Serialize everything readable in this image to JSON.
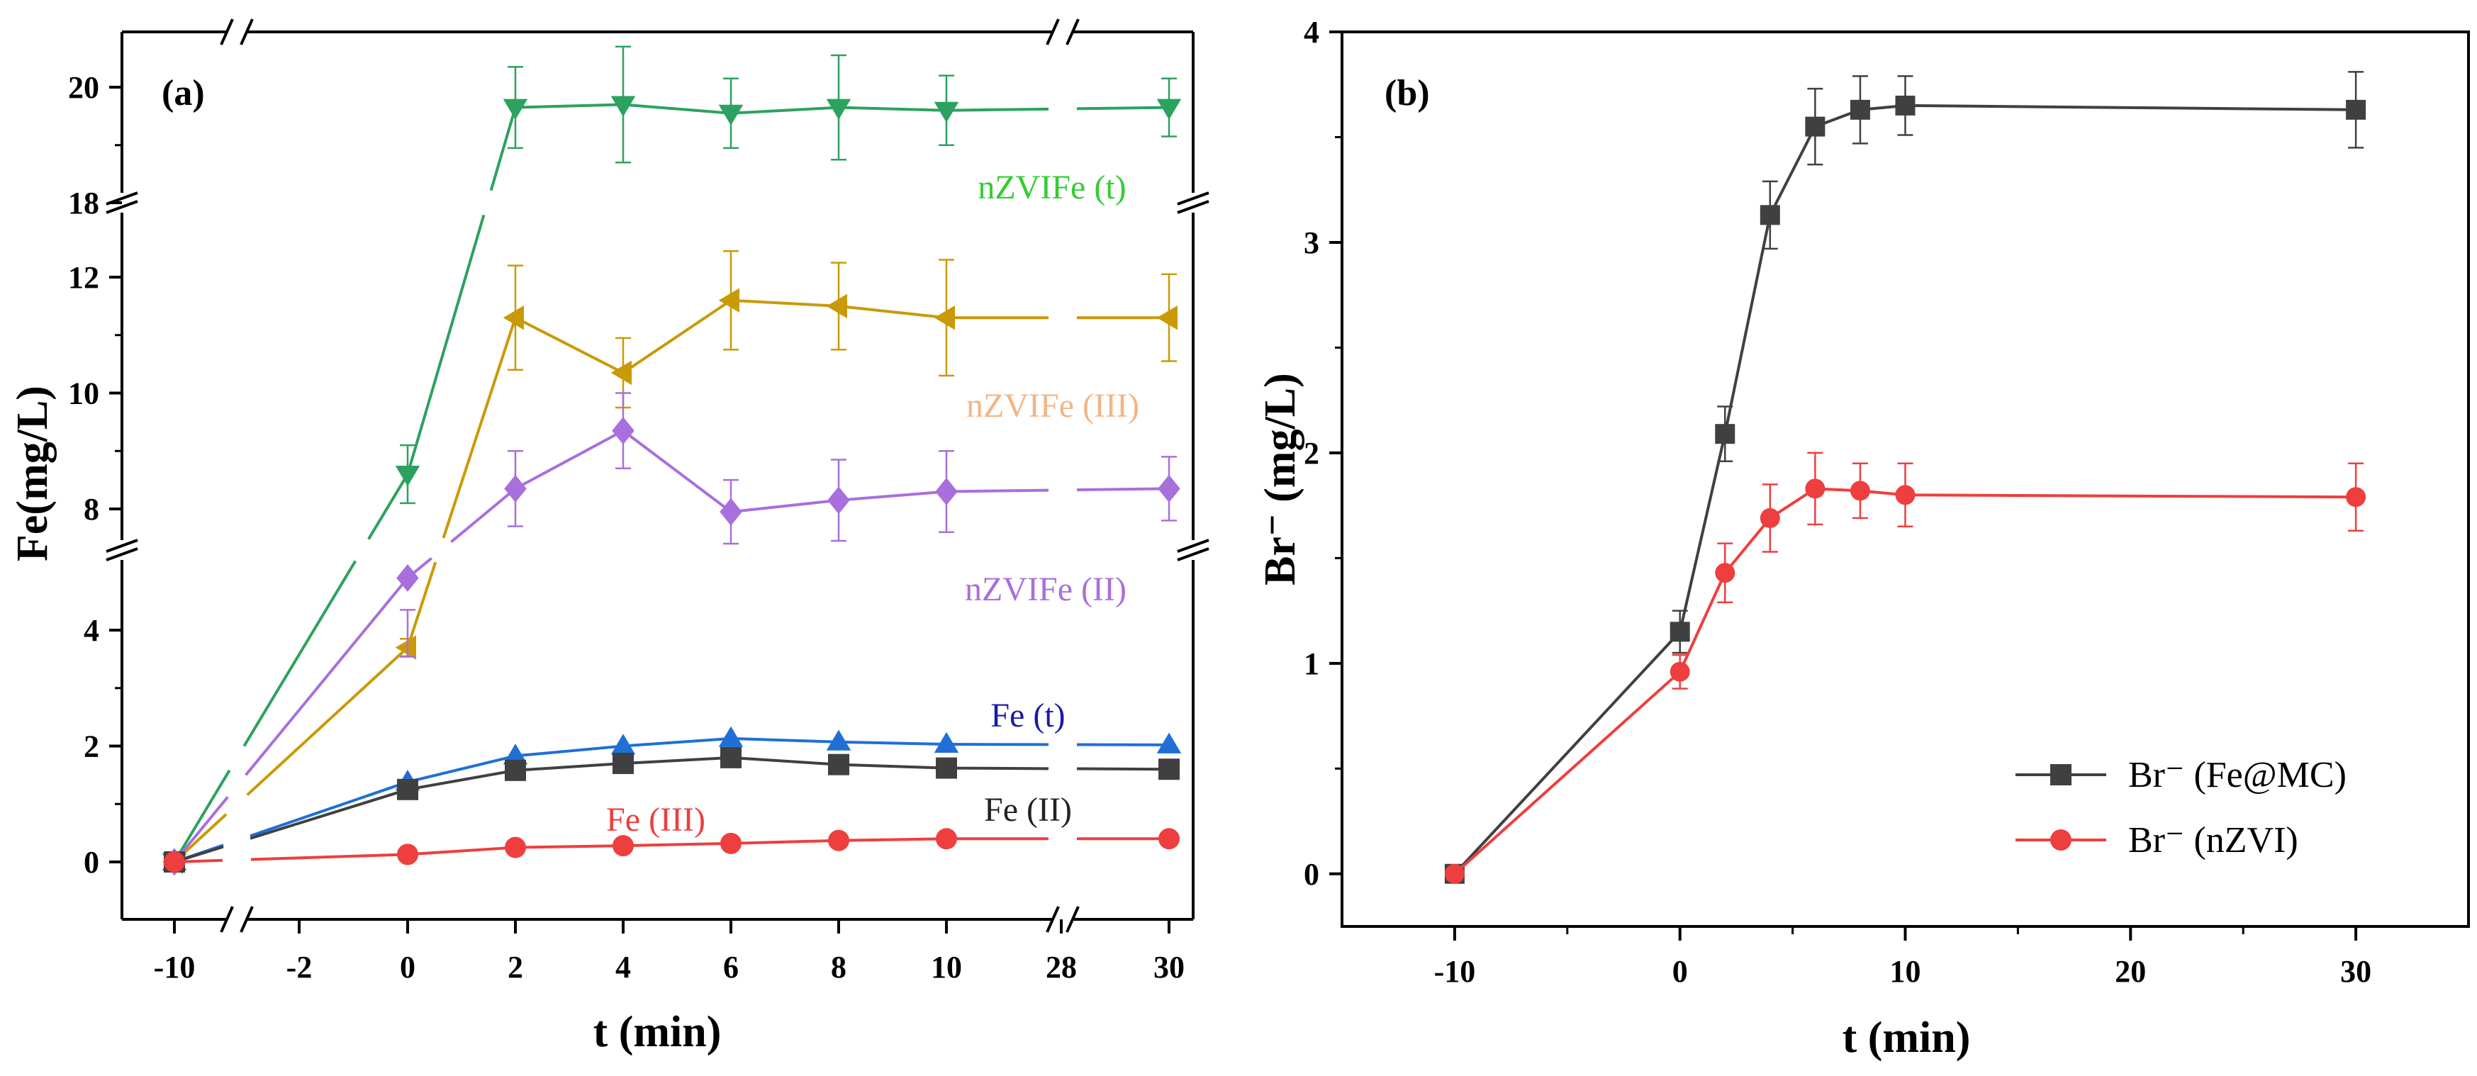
{
  "chart_data": [
    {
      "panel": "(a)",
      "type": "line",
      "xlabel": "t (min)",
      "ylabel": "Fe(mg/L)",
      "x_tick_labels": [
        "-10",
        "-2",
        "0",
        "2",
        "4",
        "6",
        "8",
        "10",
        "28",
        "30"
      ],
      "x_breaks": [
        "-10 to -2",
        "10 to 28"
      ],
      "y_breaks": [
        "5 to 7.5",
        "12.5 to 18"
      ],
      "y_ticks": [
        0,
        2,
        4,
        8,
        10,
        12,
        18,
        20
      ],
      "y_tick_labels": [
        "0",
        "2",
        "4",
        "8",
        "10",
        "12",
        "18",
        "20"
      ],
      "x": [
        -10,
        0,
        2,
        4,
        6,
        8,
        10,
        30
      ],
      "series": [
        {
          "name": "nZVIFe (t)",
          "label": "nZVIFe (t)",
          "color": "#2ca25f",
          "marker": "triangle-down",
          "values": [
            0,
            8.6,
            19.65,
            19.7,
            19.55,
            19.65,
            19.6,
            19.65
          ],
          "errors": [
            0,
            0.5,
            0.7,
            1.0,
            0.6,
            0.9,
            0.6,
            0.5
          ]
        },
        {
          "name": "nZVIFe (III)",
          "label": "nZVIFe (III)",
          "color": "#c99a06",
          "marker": "triangle-left",
          "values": [
            0,
            3.7,
            11.3,
            10.35,
            11.6,
            11.5,
            11.3,
            11.3
          ],
          "errors": [
            0,
            0.15,
            0.9,
            0.6,
            0.85,
            0.75,
            1.0,
            0.75
          ]
        },
        {
          "name": "nZVIFe (II)",
          "label": "nZVIFe (II)",
          "color": "#a96fdc",
          "marker": "diamond",
          "values": [
            0,
            4.9,
            8.35,
            9.35,
            7.95,
            8.15,
            8.3,
            8.35
          ],
          "errors": [
            0,
            0.55,
            0.65,
            0.65,
            0.55,
            0.7,
            0.7,
            0.55
          ]
        },
        {
          "name": "Fe (t)",
          "label": "Fe (t)",
          "color": "#1f6fd6",
          "marker": "triangle-up",
          "values": [
            0,
            1.38,
            1.83,
            2.0,
            2.13,
            2.07,
            2.03,
            2.02
          ],
          "errors": [
            0,
            0,
            0,
            0,
            0,
            0,
            0,
            0
          ]
        },
        {
          "name": "Fe (II)",
          "label": "Fe (II)",
          "color": "#404040",
          "marker": "square",
          "values": [
            0,
            1.25,
            1.58,
            1.7,
            1.8,
            1.68,
            1.62,
            1.6
          ],
          "errors": [
            0,
            0,
            0,
            0,
            0,
            0,
            0,
            0
          ]
        },
        {
          "name": "Fe (III)",
          "label": "Fe (III)",
          "color": "#ee3e3e",
          "marker": "circle",
          "values": [
            0,
            0.13,
            0.25,
            0.28,
            0.32,
            0.37,
            0.4,
            0.4
          ],
          "errors": [
            0,
            0,
            0,
            0,
            0,
            0,
            0,
            0
          ]
        }
      ],
      "label_colors": {
        "nZVIFe (t)": "#33cc33",
        "nZVIFe (III)": "#f2b585",
        "nZVIFe (II)": "#a96fdc",
        "Fe (t)": "#1a1aa8",
        "Fe (II)": "#222222",
        "Fe (III)": "#ee3e3e"
      }
    },
    {
      "panel": "(b)",
      "type": "line",
      "xlabel": "t (min)",
      "ylabel": "Br⁻ (mg/L)",
      "xlim": [
        -15,
        35
      ],
      "ylim": [
        -0.25,
        4
      ],
      "x_ticks": [
        -10,
        0,
        10,
        20,
        30
      ],
      "y_ticks": [
        0,
        1,
        2,
        3,
        4
      ],
      "x": [
        -10,
        0,
        2,
        4,
        6,
        8,
        10,
        30
      ],
      "legend_position": "bottom-right",
      "series": [
        {
          "name": "Br⁻ (Fe@MC)",
          "color": "#404040",
          "marker": "square",
          "values": [
            0,
            1.15,
            2.09,
            3.13,
            3.55,
            3.63,
            3.65,
            3.63
          ],
          "errors": [
            0,
            0.1,
            0.13,
            0.16,
            0.18,
            0.16,
            0.14,
            0.18
          ]
        },
        {
          "name": "Br⁻ (nZVI)",
          "color": "#ee3e3e",
          "marker": "circle",
          "values": [
            0,
            0.96,
            1.43,
            1.69,
            1.83,
            1.82,
            1.8,
            1.79
          ],
          "errors": [
            0,
            0.08,
            0.14,
            0.16,
            0.17,
            0.13,
            0.15,
            0.16
          ]
        }
      ]
    }
  ]
}
